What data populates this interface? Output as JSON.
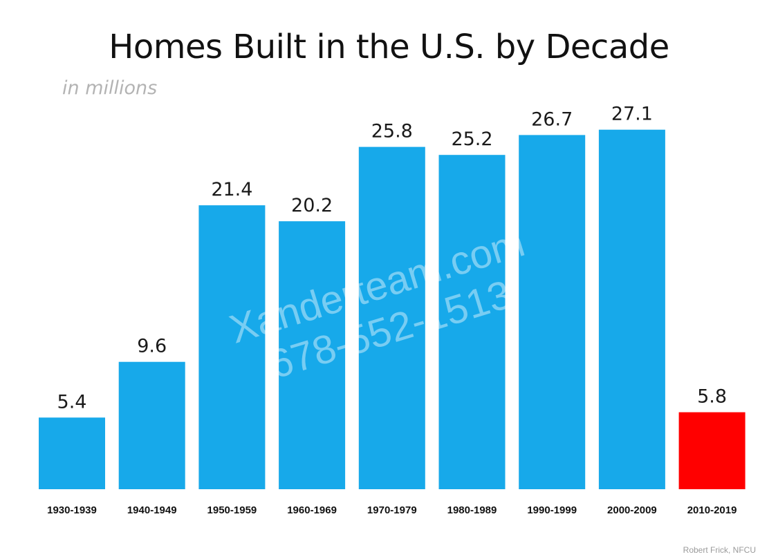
{
  "chart_data": {
    "type": "bar",
    "title": "Homes Built in the U.S. by Decade",
    "subtitle": "in millions",
    "categories": [
      "1930-1939",
      "1940-1949",
      "1950-1959",
      "1960-1969",
      "1970-1979",
      "1980-1989",
      "1990-1999",
      "2000-2009",
      "2010-2019"
    ],
    "values": [
      5.4,
      9.6,
      21.4,
      20.2,
      25.8,
      25.2,
      26.7,
      27.1,
      5.8
    ],
    "value_labels": [
      "5.4",
      "9.6",
      "21.4",
      "20.2",
      "25.8",
      "25.2",
      "26.7",
      "27.1",
      "5.8"
    ],
    "highlight_index": 8,
    "colors": {
      "bar": "#17a9ea",
      "highlight": "#ff0000"
    },
    "xlabel": "",
    "ylabel": "",
    "grid": false,
    "legend": "none"
  },
  "watermark": {
    "line1": "Xanderteam.com",
    "line2": "678-552-1513"
  },
  "credit": "Robert Frick, NFCU"
}
